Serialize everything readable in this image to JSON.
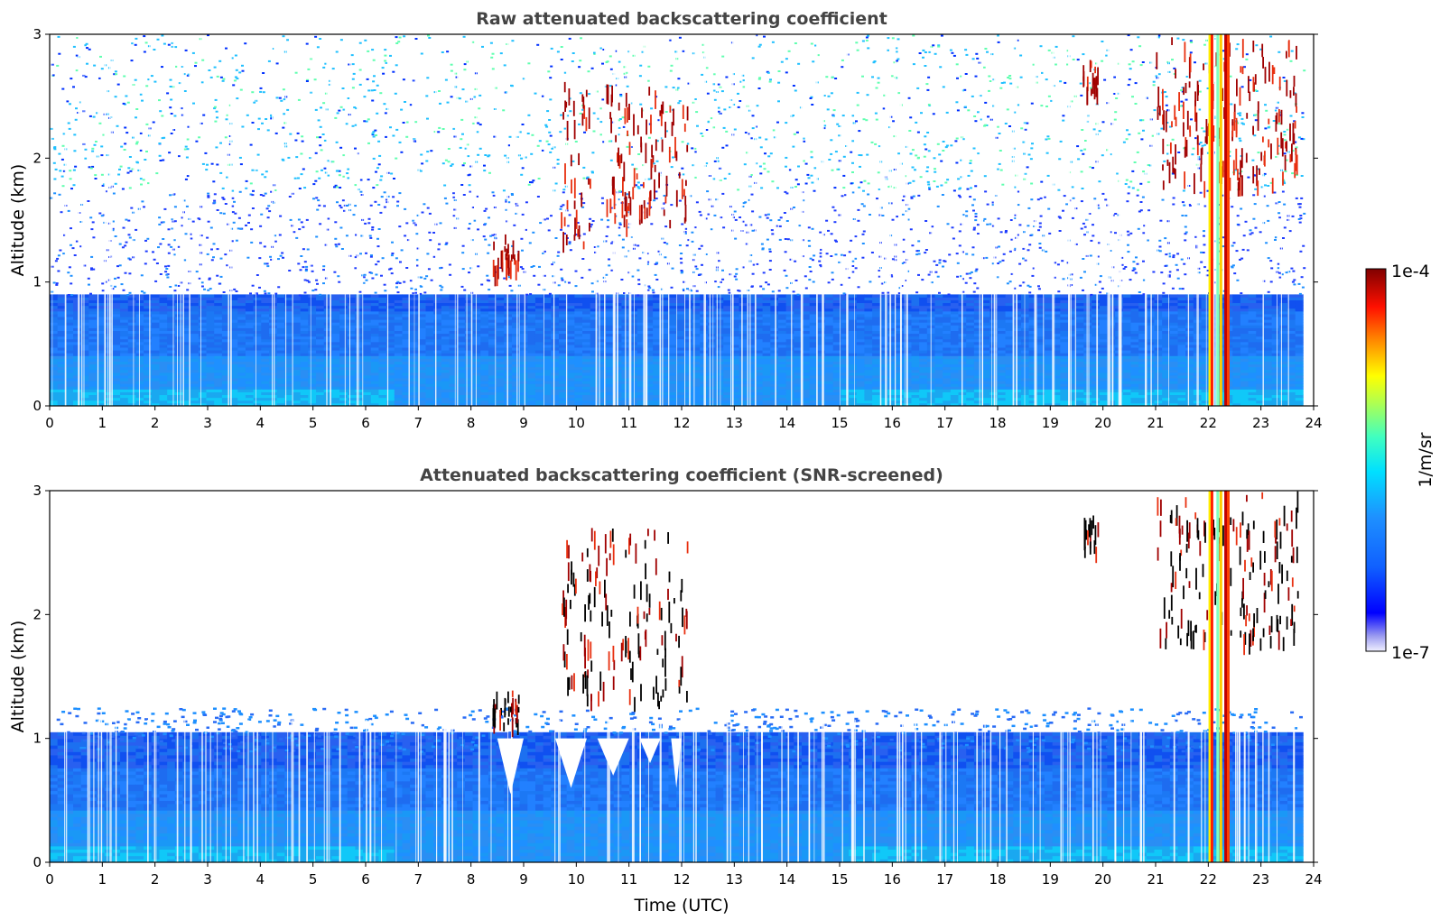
{
  "chart_data": [
    {
      "type": "heatmap",
      "title": "Raw attenuated backscattering coefficient",
      "xlabel": "",
      "ylabel": "Altitude (km)",
      "xlim": [
        0,
        24
      ],
      "ylim": [
        0,
        3
      ],
      "x_ticks": [
        "0",
        "1",
        "2",
        "3",
        "4",
        "5",
        "6",
        "7",
        "8",
        "9",
        "10",
        "11",
        "12",
        "13",
        "14",
        "15",
        "16",
        "17",
        "18",
        "19",
        "20",
        "21",
        "22",
        "23",
        "24"
      ],
      "y_ticks": [
        "0",
        "1",
        "2",
        "3"
      ],
      "data_end_time": 23.8,
      "regions": [
        {
          "label": "boundary layer aerosol",
          "t": [
            0,
            23.8
          ],
          "alt": [
            0,
            0.9
          ],
          "value": "~1e-6"
        },
        {
          "label": "noise",
          "t": [
            0,
            23.8
          ],
          "alt": [
            0.9,
            3
          ],
          "value": "noisy 1e-7 to 1e-6"
        },
        {
          "label": "cloud",
          "t": [
            8.4,
            8.9
          ],
          "alt": [
            1.1,
            1.4
          ],
          "value": "~1e-4"
        },
        {
          "label": "cloud",
          "t": [
            9.7,
            10.3
          ],
          "alt": [
            1.3,
            2.7
          ],
          "value": "~1e-4"
        },
        {
          "label": "cloud",
          "t": [
            10.5,
            12.1
          ],
          "alt": [
            1.5,
            2.6
          ],
          "value": "~1e-4"
        },
        {
          "label": "cloud",
          "t": [
            19.6,
            19.9
          ],
          "alt": [
            2.5,
            2.8
          ],
          "value": "~1e-4"
        },
        {
          "label": "cloud",
          "t": [
            21.0,
            23.7
          ],
          "alt": [
            1.8,
            3.0
          ],
          "value": "~1e-4"
        },
        {
          "label": "rain",
          "t": [
            22.0,
            22.45
          ],
          "alt": [
            0,
            3
          ],
          "value": "~1e-5 to 1e-4"
        }
      ]
    },
    {
      "type": "heatmap",
      "title": "Attenuated backscattering coefficient (SNR-screened)",
      "xlabel": "Time (UTC)",
      "ylabel": "Altitude (km)",
      "xlim": [
        0,
        24
      ],
      "ylim": [
        0,
        3
      ],
      "x_ticks": [
        "0",
        "1",
        "2",
        "3",
        "4",
        "5",
        "6",
        "7",
        "8",
        "9",
        "10",
        "11",
        "12",
        "13",
        "14",
        "15",
        "16",
        "17",
        "18",
        "19",
        "20",
        "21",
        "22",
        "23",
        "24"
      ],
      "y_ticks": [
        "0",
        "1",
        "2",
        "3"
      ],
      "data_end_time": 23.8,
      "regions": [
        {
          "label": "boundary layer aerosol",
          "t": [
            0,
            23.8
          ],
          "alt": [
            0,
            1.1
          ],
          "value": "~1e-6"
        },
        {
          "label": "cloud",
          "t": [
            8.4,
            8.9
          ],
          "alt": [
            1.1,
            1.4
          ],
          "value": "~1e-4"
        },
        {
          "label": "cloud",
          "t": [
            9.7,
            12.1
          ],
          "alt": [
            1.3,
            2.7
          ],
          "value": "~1e-4"
        },
        {
          "label": "cloud",
          "t": [
            19.6,
            19.9
          ],
          "alt": [
            2.5,
            2.8
          ],
          "value": "~1e-4"
        },
        {
          "label": "cloud",
          "t": [
            21.0,
            23.7
          ],
          "alt": [
            1.8,
            3.0
          ],
          "value": "~1e-4"
        },
        {
          "label": "rain",
          "t": [
            22.0,
            22.45
          ],
          "alt": [
            0,
            3
          ],
          "value": "~1e-5 to 1e-4"
        }
      ]
    }
  ],
  "colorbar": {
    "label": "1/m/sr",
    "max_label": "1e-4",
    "min_label": "1e-7",
    "scale": "log",
    "colors": [
      "#e6e6fa",
      "#0000ff",
      "#1e90ff",
      "#00ffff",
      "#7fff7f",
      "#ffff00",
      "#ff7f00",
      "#ff0000",
      "#800000"
    ]
  }
}
